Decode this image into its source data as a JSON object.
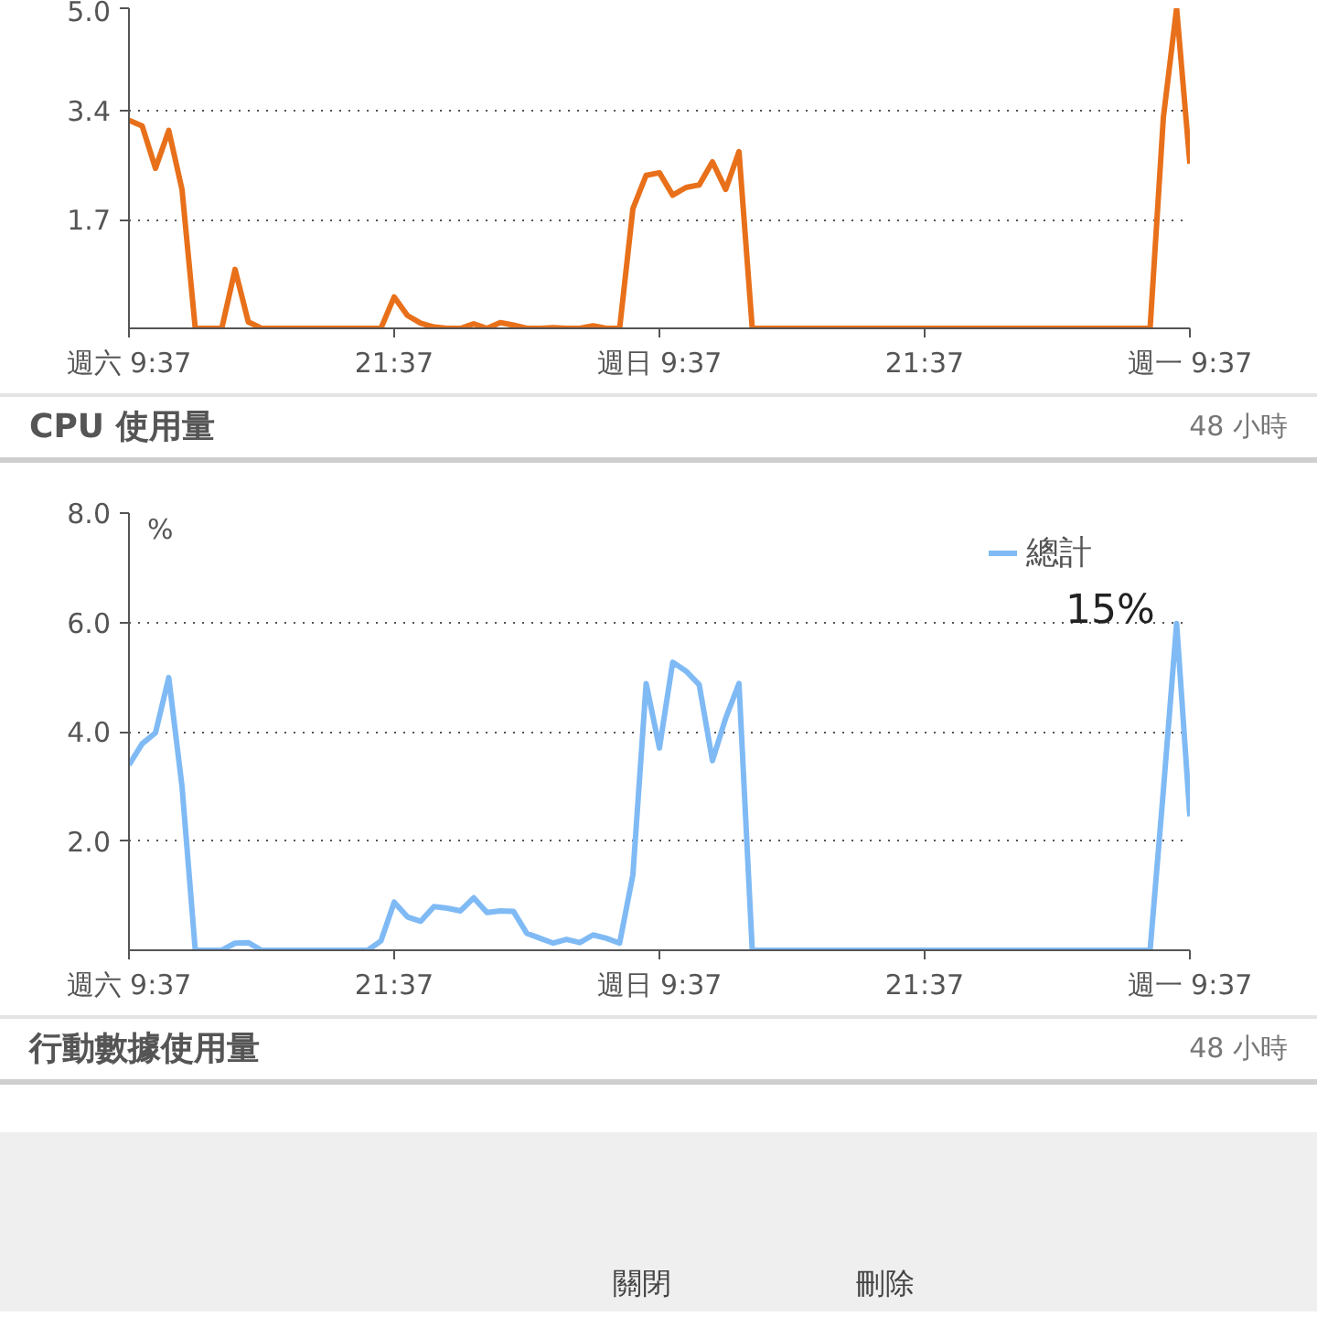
{
  "chart_data": [
    {
      "type": "line",
      "categories": [
        "週六 9:37",
        null,
        null,
        null,
        null,
        null,
        null,
        null,
        null,
        null,
        null,
        null,
        null,
        null,
        null,
        null,
        null,
        null,
        null,
        null,
        "21:37",
        null,
        null,
        null,
        null,
        null,
        null,
        null,
        null,
        null,
        null,
        null,
        null,
        null,
        null,
        null,
        null,
        null,
        null,
        null,
        "週日 9:37",
        null,
        null,
        null,
        null,
        null,
        null,
        null,
        null,
        null,
        null,
        null,
        null,
        null,
        null,
        null,
        null,
        null,
        null,
        null,
        "21:37",
        null,
        null,
        null,
        null,
        null,
        null,
        null,
        null,
        null,
        null,
        null,
        null,
        null,
        null,
        null,
        null,
        null,
        null,
        null,
        "週一 9:37"
      ],
      "series": [
        {
          "color": "#e8701a",
          "values": [
            3.25,
            3.16,
            2.5,
            3.09,
            2.17,
            0,
            0,
            0,
            0.92,
            0.1,
            0,
            0,
            0,
            0,
            0,
            0,
            0,
            0,
            0,
            0,
            0.49,
            0.2,
            0.08,
            0.02,
            0,
            0,
            0.07,
            0,
            0.09,
            0.05,
            0,
            0,
            0.01,
            0,
            0,
            0.04,
            0,
            0,
            1.87,
            2.39,
            2.43,
            2.08,
            2.2,
            2.24,
            2.6,
            2.17,
            2.76,
            0,
            0,
            0,
            0,
            0,
            0,
            0,
            0,
            0,
            0,
            0,
            0,
            0,
            0,
            0,
            0,
            0,
            0,
            0,
            0,
            0,
            0,
            0,
            0,
            0,
            0,
            0,
            0,
            0,
            0,
            0,
            3.29,
            5.0,
            2.57
          ]
        }
      ],
      "ylim": [
        0,
        5.0
      ],
      "yticks": [
        {
          "value": 5,
          "label": "5.0"
        },
        3.4,
        1.7
      ],
      "grid": "y",
      "line_style": "solid",
      "marker": "none",
      "legend": false
    },
    {
      "type": "line",
      "title": "CPU 使用量",
      "subtitle": "48 小時",
      "ylabel": "%",
      "annotations": [
        "15%"
      ],
      "categories": [
        "週六 9:37",
        null,
        null,
        null,
        null,
        null,
        null,
        null,
        null,
        null,
        null,
        null,
        null,
        null,
        null,
        null,
        null,
        null,
        null,
        null,
        "21:37",
        null,
        null,
        null,
        null,
        null,
        null,
        null,
        null,
        null,
        null,
        null,
        null,
        null,
        null,
        null,
        null,
        null,
        null,
        null,
        "週日 9:37",
        null,
        null,
        null,
        null,
        null,
        null,
        null,
        null,
        null,
        null,
        null,
        null,
        null,
        null,
        null,
        null,
        null,
        null,
        null,
        "21:37",
        null,
        null,
        null,
        null,
        null,
        null,
        null,
        null,
        null,
        null,
        null,
        null,
        null,
        null,
        null,
        null,
        null,
        null,
        null,
        "週一 9:37"
      ],
      "series": [
        {
          "name": "總計",
          "color": "#7fbaf5",
          "values": [
            3.39,
            3.78,
            3.98,
            4.99,
            3.0,
            0,
            0,
            0,
            0.13,
            0.14,
            0,
            0,
            0,
            0,
            0,
            0,
            0,
            0,
            0,
            0.17,
            0.88,
            0.61,
            0.53,
            0.8,
            0.77,
            0.72,
            0.96,
            0.69,
            0.72,
            0.71,
            0.31,
            0.22,
            0.13,
            0.2,
            0.14,
            0.28,
            0.22,
            0.13,
            1.38,
            4.88,
            3.7,
            5.27,
            5.11,
            4.86,
            3.47,
            4.25,
            4.88,
            0,
            0,
            0,
            0,
            0,
            0,
            0,
            0,
            0,
            0,
            0,
            0,
            0,
            0,
            0,
            0,
            0,
            0,
            0,
            0,
            0,
            0,
            0,
            0,
            0,
            0,
            0,
            0,
            0,
            0,
            0,
            2.92,
            5.98,
            2.45
          ]
        }
      ],
      "ylim": [
        0,
        8.0
      ],
      "yticks": [
        {
          "value": 8,
          "label": "8.0"
        },
        {
          "value": 6,
          "label": "6.0"
        },
        {
          "value": 4,
          "label": "4.0"
        },
        {
          "value": 2,
          "label": "2.0"
        }
      ],
      "grid": "y",
      "line_style": "solid",
      "marker": "none",
      "legend": "top right"
    },
    {
      "type": "other",
      "title": "行動數據使用量",
      "subtitle": "48 小時",
      "annotations": [
        "關閉",
        "刪除"
      ]
    }
  ]
}
